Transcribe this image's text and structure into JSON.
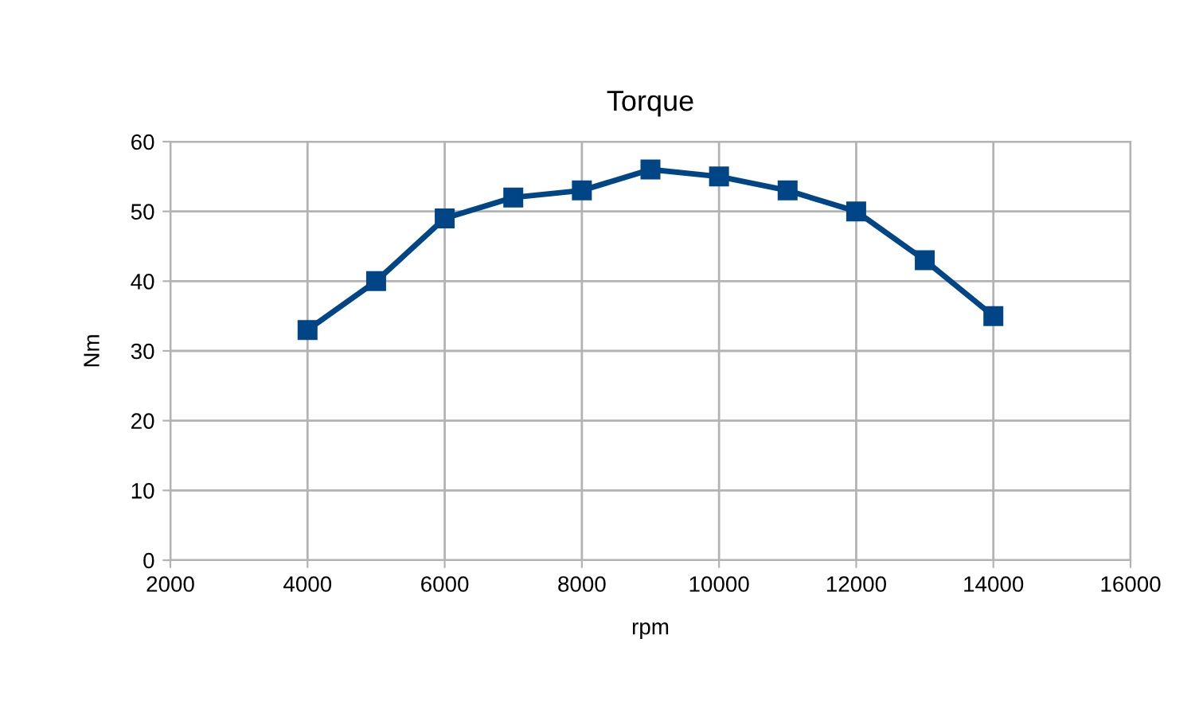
{
  "chart_data": {
    "type": "line",
    "title": "Torque",
    "xlabel": "rpm",
    "ylabel": "Nm",
    "x": [
      4000,
      5000,
      6000,
      7000,
      8000,
      9000,
      10000,
      11000,
      12000,
      13000,
      14000
    ],
    "series": [
      {
        "color": "#004586",
        "values": [
          33,
          40,
          49,
          52,
          53,
          56,
          55,
          53,
          50,
          43,
          35
        ]
      }
    ],
    "xlim": [
      2000,
      16000
    ],
    "xticks": [
      2000,
      4000,
      6000,
      8000,
      10000,
      12000,
      14000,
      16000
    ],
    "ylim": [
      0,
      60
    ],
    "yticks": [
      0,
      10,
      20,
      30,
      40,
      50,
      60
    ],
    "grid": true,
    "marker": "square",
    "line_style": "solid",
    "legend": false
  }
}
